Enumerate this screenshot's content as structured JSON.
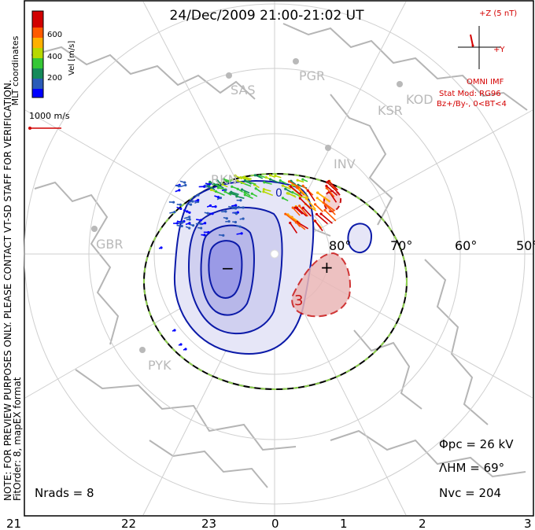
{
  "title": "24/Dec/2009 21:00-21:02 UT",
  "coordinate_label": "MLT coordinates",
  "velocity_scale": {
    "label": "Vel [m/s]",
    "ticks": [
      "600",
      "400",
      "200"
    ],
    "colors": [
      "#d10000",
      "#ff5a00",
      "#ffb000",
      "#b7d800",
      "#35c735",
      "#158a5a",
      "#2a5bb8",
      "#0000ff"
    ]
  },
  "reference_vector": "1000 m/s",
  "imf": {
    "z_label": "+Z (5 nT)",
    "y_label": "+Y",
    "source": "OMNI IMF",
    "stat_mod": "Stat Mod: RG96",
    "condition": "Bz+/By-, 0<BT<4"
  },
  "stations": [
    {
      "name": "SAS"
    },
    {
      "name": "PGR"
    },
    {
      "name": "KOD"
    },
    {
      "name": "KSR"
    },
    {
      "name": "INV"
    },
    {
      "name": "RKN"
    },
    {
      "name": "GBR"
    },
    {
      "name": "PYK"
    }
  ],
  "latitude_labels": [
    "80°",
    "70°",
    "60°",
    "50°"
  ],
  "contour_labels": {
    "negative": "−",
    "positive": "+",
    "value_3": "3",
    "value_0": "0"
  },
  "mlt_labels": [
    "21",
    "22",
    "23",
    "0",
    "1",
    "2",
    "3"
  ],
  "watermark": "NOTE: FOR PREVIEW PURPOSES ONLY. PLEASE CONTACT VT-SD STAFF FOR VERIFICATION.",
  "fit_info": "FitOrder: 8, mapEX format",
  "stats": {
    "phi_pc": "Φpc = 26 kV",
    "lambda_hm": "ΛHM = 69°",
    "n_vc": "Nvc = 204",
    "n_rads": "Nrads = 8"
  },
  "colors": {
    "negative_fill": "#9a9ae6",
    "contour_blue": "#0b1aa8",
    "contour_red": "#c81414",
    "positive_fill": "#eab7b7",
    "land": "#b5b5b5",
    "grid": "#cfcfcf"
  }
}
